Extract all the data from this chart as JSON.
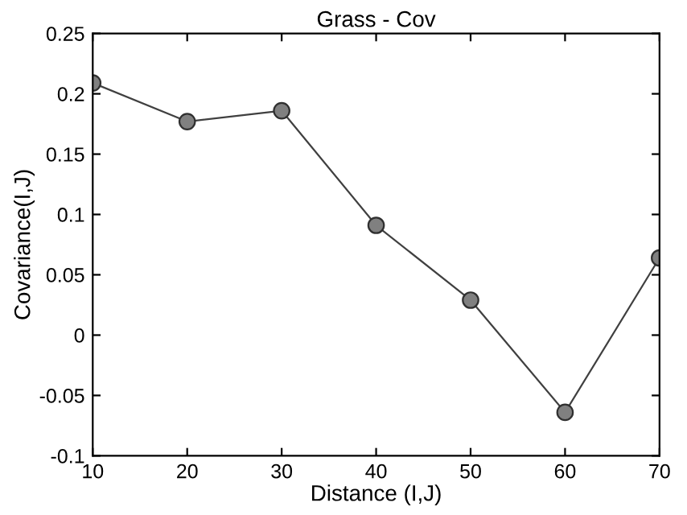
{
  "chart_data": {
    "type": "line",
    "title": "Grass - Cov",
    "xlabel": "Distance (I,J)",
    "ylabel": "Covariance(I,J)",
    "x": [
      10,
      20,
      30,
      40,
      50,
      60,
      70
    ],
    "series": [
      {
        "color": "#808080",
        "values": [
          0.209,
          0.177,
          0.186,
          0.091,
          0.029,
          -0.064,
          0.064
        ]
      }
    ],
    "xlim": [
      10,
      70
    ],
    "xticks": [
      10,
      20,
      30,
      40,
      50,
      60,
      70
    ],
    "ylim": [
      -0.1,
      0.25
    ],
    "yticks": [
      -0.1,
      -0.05,
      0,
      0.05,
      0.1,
      0.15,
      0.2,
      0.25
    ],
    "grid": false,
    "marker": "circle",
    "line_style": "solid"
  }
}
